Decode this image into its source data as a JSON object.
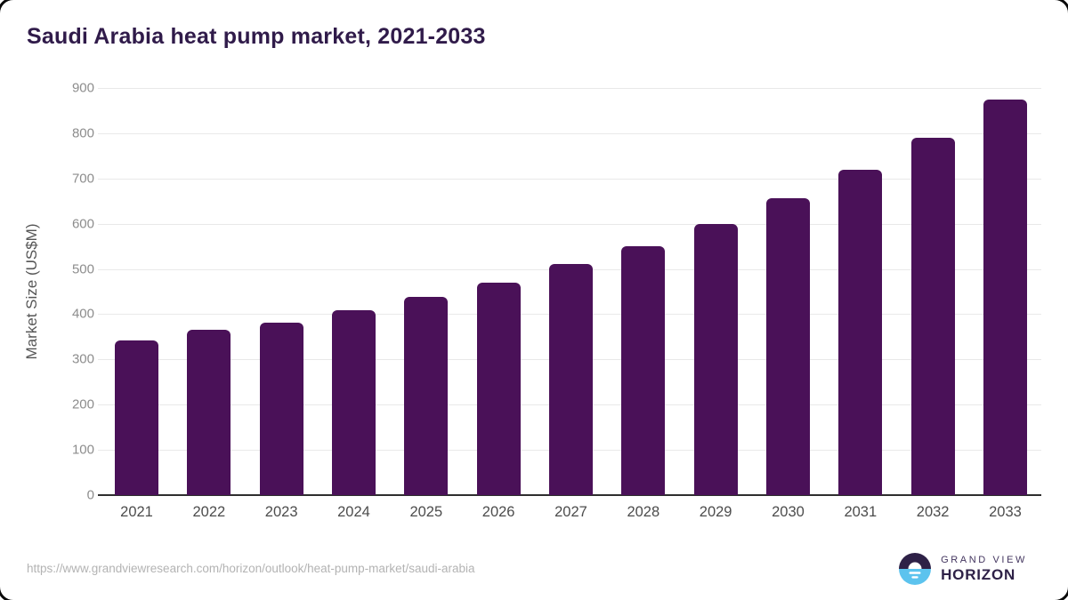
{
  "title": "Saudi Arabia heat pump market, 2021-2033",
  "chart_data": {
    "type": "bar",
    "title": "Saudi Arabia heat pump market, 2021-2033",
    "ylabel": "Market Size (US$M)",
    "xlabel": "",
    "categories": [
      "2021",
      "2022",
      "2023",
      "2024",
      "2025",
      "2026",
      "2027",
      "2028",
      "2029",
      "2030",
      "2031",
      "2032",
      "2033"
    ],
    "values": [
      341,
      365,
      381,
      408,
      438,
      470,
      511,
      551,
      600,
      656,
      720,
      790,
      875
    ],
    "ylim": [
      0,
      900
    ],
    "ytick_step": 100,
    "grid": true,
    "legend": false,
    "bar_color": "#4a1158"
  },
  "footer": {
    "source_url": "https://www.grandviewresearch.com/horizon/outlook/heat-pump-market/saudi-arabia",
    "brand": {
      "line1": "GRAND VIEW",
      "line2": "HORIZON"
    }
  },
  "colors": {
    "title_text": "#301b4a",
    "bar": "#4a1158",
    "gridline": "#e9e9e9",
    "axis_line": "#2e2e2e",
    "y_tick_text": "#8d8d8d",
    "x_tick_text": "#4c4c4c",
    "y_axis_title_text": "#565656",
    "url_text": "#b3b3b3",
    "logo_dark": "#2e2147",
    "logo_blue": "#5cc3ee"
  }
}
